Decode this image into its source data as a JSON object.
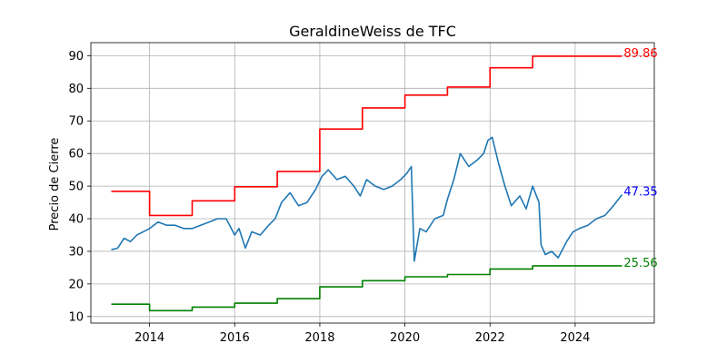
{
  "chart_data": {
    "type": "line",
    "title": "GeraldineWeiss de TFC",
    "xlabel": "",
    "ylabel": "Precio de Cierre",
    "xlim": [
      2012.62,
      2025.86
    ],
    "ylim": [
      8,
      94
    ],
    "x_ticks": [
      2014,
      2016,
      2018,
      2020,
      2022,
      2024
    ],
    "x_tick_labels": [
      "2014",
      "2016",
      "2018",
      "2020",
      "2022",
      "2024"
    ],
    "y_ticks": [
      10,
      20,
      30,
      40,
      50,
      60,
      70,
      80,
      90
    ],
    "y_tick_labels": [
      "10",
      "20",
      "30",
      "40",
      "50",
      "60",
      "70",
      "80",
      "90"
    ],
    "grid": true,
    "colors": {
      "price": "#1f77b4",
      "upper": "#ff0000",
      "lower": "#008000"
    },
    "series": [
      {
        "key": "price",
        "x": [
          2013.1,
          2013.25,
          2013.4,
          2013.55,
          2013.7,
          2013.85,
          2014.0,
          2014.2,
          2014.4,
          2014.6,
          2014.8,
          2015.0,
          2015.2,
          2015.4,
          2015.6,
          2015.8,
          2016.0,
          2016.1,
          2016.25,
          2016.4,
          2016.6,
          2016.8,
          2016.95,
          2017.1,
          2017.3,
          2017.5,
          2017.7,
          2017.9,
          2018.05,
          2018.2,
          2018.4,
          2018.6,
          2018.8,
          2018.95,
          2019.1,
          2019.3,
          2019.5,
          2019.7,
          2019.9,
          2020.05,
          2020.15,
          2020.22,
          2020.35,
          2020.5,
          2020.7,
          2020.9,
          2021.0,
          2021.15,
          2021.3,
          2021.5,
          2021.7,
          2021.85,
          2021.95,
          2022.05,
          2022.2,
          2022.35,
          2022.5,
          2022.7,
          2022.85,
          2023.0,
          2023.15,
          2023.2,
          2023.3,
          2023.45,
          2023.6,
          2023.8,
          2023.95,
          2024.1,
          2024.3,
          2024.5,
          2024.7,
          2024.9,
          2025.1
        ],
        "values": [
          30.5,
          31,
          34,
          33,
          35,
          36,
          37,
          39,
          38,
          38,
          37,
          37,
          38,
          39,
          40,
          40,
          35,
          37,
          31,
          36,
          35,
          38,
          40,
          45,
          48,
          44,
          45,
          49,
          53,
          55,
          52,
          53,
          50,
          47,
          52,
          50,
          49,
          50,
          52,
          54,
          56,
          27,
          37,
          36,
          40,
          41,
          46,
          52,
          60,
          56,
          58,
          60,
          64,
          65,
          57,
          50,
          44,
          47,
          43,
          50,
          45,
          32,
          29,
          30,
          28,
          33,
          36,
          37,
          38,
          40,
          41,
          44,
          47.35
        ]
      },
      {
        "key": "upper",
        "x": [
          2013.1,
          2014.0,
          2014.0,
          2015.0,
          2015.0,
          2016.0,
          2016.0,
          2017.0,
          2017.0,
          2018.0,
          2018.0,
          2019.0,
          2019.0,
          2020.0,
          2020.0,
          2021.0,
          2021.0,
          2022.0,
          2022.0,
          2023.0,
          2023.0,
          2025.1
        ],
        "values": [
          48.4,
          48.4,
          41.0,
          41.0,
          45.5,
          45.5,
          49.8,
          49.8,
          54.5,
          54.5,
          67.5,
          67.5,
          74.0,
          74.0,
          77.9,
          77.9,
          80.4,
          80.4,
          86.3,
          86.3,
          89.86,
          89.86
        ],
        "end_label": "89.86"
      },
      {
        "key": "lower",
        "x": [
          2013.1,
          2014.0,
          2014.0,
          2015.0,
          2015.0,
          2016.0,
          2016.0,
          2017.0,
          2017.0,
          2018.0,
          2018.0,
          2019.0,
          2019.0,
          2020.0,
          2020.0,
          2021.0,
          2021.0,
          2022.0,
          2022.0,
          2023.0,
          2023.0,
          2025.1
        ],
        "values": [
          13.8,
          13.8,
          11.8,
          11.8,
          12.9,
          12.9,
          14.1,
          14.1,
          15.5,
          15.5,
          19.1,
          19.1,
          21.0,
          21.0,
          22.2,
          22.2,
          22.9,
          22.9,
          24.6,
          24.6,
          25.56,
          25.56
        ],
        "end_label": "25.56"
      }
    ],
    "price_end_label": "47.35"
  }
}
